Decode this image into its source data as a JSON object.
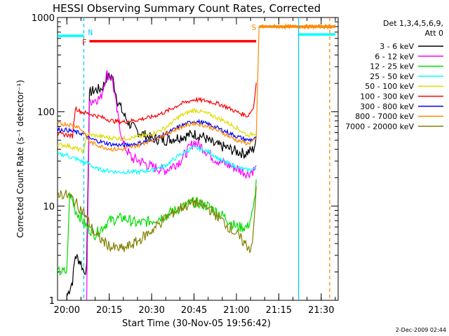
{
  "chart_data": {
    "type": "line",
    "title": "HESSI Observing Summary Count Rates, Corrected",
    "xlabel": "Start Time (30-Nov-05 19:56:42)",
    "ylabel": "Corrected Count Rate (s⁻¹ detector⁻¹)",
    "y_scale": "log",
    "ylim": [
      1,
      1000
    ],
    "xlim": [
      "19:56:42",
      "21:36:00"
    ],
    "x_ticks": [
      "20:00",
      "20:15",
      "20:30",
      "20:45",
      "21:00",
      "21:15",
      "21:30"
    ],
    "y_ticks": [
      "1",
      "10",
      "100",
      "1000"
    ],
    "legend_position": "right",
    "legend_header": [
      "Det 1,3,4,5,6,9,",
      "Att 0"
    ],
    "grid": false,
    "footer": "2-Dec-2009 02:44",
    "flag_bars": [
      {
        "label": "F",
        "color": "#ff0000",
        "start": "20:08",
        "end": "21:07",
        "y": 560
      },
      {
        "label": "S",
        "color": "#ff8800",
        "start": "21:08",
        "end": "21:35",
        "y": 800
      },
      {
        "label": "",
        "color": "#00ffff",
        "start": "19:56",
        "end": "20:06",
        "y": 640
      },
      {
        "label": "",
        "color": "#00ffff",
        "start": "21:22",
        "end": "21:35",
        "y": 660
      }
    ],
    "markers": [
      {
        "label": "N",
        "color": "#00ccff",
        "x": "20:06",
        "style": "dashed"
      },
      {
        "label": "",
        "color": "#00ccff",
        "x": "21:22",
        "style": "solid"
      },
      {
        "label": "",
        "color": "#ff8800",
        "x": "21:33",
        "style": "dashed"
      }
    ],
    "series": [
      {
        "name": "3 - 6 keV",
        "color": "#000000",
        "points": [
          [
            "20:00",
            1.1
          ],
          [
            "20:02",
            1.6
          ],
          [
            "20:03",
            3
          ],
          [
            "20:05",
            2.5
          ],
          [
            "20:06",
            2
          ],
          [
            "20:07",
            2.2
          ],
          [
            "20:08",
            160
          ],
          [
            "20:10",
            170
          ],
          [
            "20:12",
            175
          ],
          [
            "20:13",
            190
          ],
          [
            "20:14",
            230
          ],
          [
            "20:16",
            240
          ],
          [
            "20:18",
            130
          ],
          [
            "20:20",
            95
          ],
          [
            "20:22",
            75
          ],
          [
            "20:25",
            62
          ],
          [
            "20:30",
            52
          ],
          [
            "20:35",
            50
          ],
          [
            "20:40",
            54
          ],
          [
            "20:45",
            58
          ],
          [
            "20:48",
            55
          ],
          [
            "20:52",
            45
          ],
          [
            "20:56",
            42
          ],
          [
            "21:00",
            38
          ],
          [
            "21:03",
            36
          ],
          [
            "21:06",
            40
          ],
          [
            "21:07",
            50
          ]
        ]
      },
      {
        "name": "6 - 12 keV",
        "color": "#ff00ff",
        "points": [
          [
            "20:07",
            1.0
          ],
          [
            "20:08",
            130
          ],
          [
            "20:10",
            135
          ],
          [
            "20:12",
            140
          ],
          [
            "20:14",
            250
          ],
          [
            "20:16",
            230
          ],
          [
            "20:18",
            90
          ],
          [
            "20:20",
            45
          ],
          [
            "20:23",
            32
          ],
          [
            "20:26",
            30
          ],
          [
            "20:30",
            26
          ],
          [
            "20:35",
            24
          ],
          [
            "20:40",
            30
          ],
          [
            "20:45",
            48
          ],
          [
            "20:48",
            42
          ],
          [
            "20:52",
            32
          ],
          [
            "20:56",
            28
          ],
          [
            "21:00",
            25
          ],
          [
            "21:04",
            22
          ],
          [
            "21:07",
            25
          ]
        ]
      },
      {
        "name": "12 - 25 keV",
        "color": "#00dd00",
        "points": [
          [
            "19:56",
            2.0
          ],
          [
            "20:00",
            2.0
          ],
          [
            "20:01",
            14
          ],
          [
            "20:03",
            9
          ],
          [
            "20:05",
            7.5
          ],
          [
            "20:07",
            6
          ],
          [
            "20:10",
            5
          ],
          [
            "20:15",
            7
          ],
          [
            "20:20",
            7.5
          ],
          [
            "20:25",
            6.5
          ],
          [
            "20:30",
            7
          ],
          [
            "20:35",
            8
          ],
          [
            "20:40",
            9.5
          ],
          [
            "20:45",
            11
          ],
          [
            "20:50",
            10
          ],
          [
            "20:55",
            8
          ],
          [
            "21:00",
            6
          ],
          [
            "21:04",
            6
          ],
          [
            "21:06",
            9
          ],
          [
            "21:07",
            18
          ]
        ]
      },
      {
        "name": "25 - 50 keV",
        "color": "#00ffff",
        "points": [
          [
            "19:56",
            35
          ],
          [
            "20:00",
            35
          ],
          [
            "20:01",
            33
          ],
          [
            "20:03",
            32
          ],
          [
            "20:05",
            30
          ],
          [
            "20:08",
            28
          ],
          [
            "20:10",
            25
          ],
          [
            "20:13",
            24
          ],
          [
            "20:18",
            23
          ],
          [
            "20:25",
            23
          ],
          [
            "20:30",
            24
          ],
          [
            "20:35",
            27
          ],
          [
            "20:40",
            35
          ],
          [
            "20:45",
            42
          ],
          [
            "20:50",
            38
          ],
          [
            "20:55",
            30
          ],
          [
            "21:00",
            26
          ],
          [
            "21:04",
            24
          ],
          [
            "21:07",
            25
          ]
        ]
      },
      {
        "name": "50 - 100 keV",
        "color": "#dddd00",
        "points": [
          [
            "19:56",
            45
          ],
          [
            "20:00",
            44
          ],
          [
            "20:02",
            42
          ],
          [
            "20:04",
            40
          ],
          [
            "20:06",
            38
          ],
          [
            "20:07",
            58
          ],
          [
            "20:10",
            56
          ],
          [
            "20:15",
            53
          ],
          [
            "20:20",
            52
          ],
          [
            "20:25",
            54
          ],
          [
            "20:30",
            58
          ],
          [
            "20:35",
            68
          ],
          [
            "20:40",
            90
          ],
          [
            "20:45",
            105
          ],
          [
            "20:50",
            95
          ],
          [
            "20:55",
            82
          ],
          [
            "21:00",
            68
          ],
          [
            "21:04",
            56
          ],
          [
            "21:07",
            60
          ]
        ]
      },
      {
        "name": "100 - 300 keV",
        "color": "#ff0000",
        "points": [
          [
            "19:56",
            58
          ],
          [
            "20:00",
            57
          ],
          [
            "20:02",
            55
          ],
          [
            "20:03",
            110
          ],
          [
            "20:05",
            100
          ],
          [
            "20:08",
            95
          ],
          [
            "20:12",
            88
          ],
          [
            "20:16",
            80
          ],
          [
            "20:20",
            78
          ],
          [
            "20:25",
            82
          ],
          [
            "20:30",
            88
          ],
          [
            "20:35",
            100
          ],
          [
            "20:40",
            120
          ],
          [
            "20:45",
            135
          ],
          [
            "20:50",
            130
          ],
          [
            "20:55",
            118
          ],
          [
            "21:00",
            100
          ],
          [
            "21:04",
            90
          ],
          [
            "21:06",
            110
          ],
          [
            "21:07",
            200
          ]
        ]
      },
      {
        "name": "300 - 800 keV",
        "color": "#0000ff",
        "points": [
          [
            "19:56",
            65
          ],
          [
            "20:00",
            64
          ],
          [
            "20:02",
            62
          ],
          [
            "20:04",
            60
          ],
          [
            "20:06",
            58
          ],
          [
            "20:08",
            52
          ],
          [
            "20:12",
            48
          ],
          [
            "20:16",
            45
          ],
          [
            "20:20",
            44
          ],
          [
            "20:25",
            46
          ],
          [
            "20:30",
            50
          ],
          [
            "20:35",
            58
          ],
          [
            "20:40",
            70
          ],
          [
            "20:45",
            80
          ],
          [
            "20:50",
            74
          ],
          [
            "20:55",
            64
          ],
          [
            "21:00",
            55
          ],
          [
            "21:04",
            50
          ],
          [
            "21:07",
            52
          ]
        ]
      },
      {
        "name": "800 - 7000 keV",
        "color": "#ff8800",
        "points": [
          [
            "19:56",
            75
          ],
          [
            "20:00",
            74
          ],
          [
            "20:02",
            72
          ],
          [
            "20:04",
            70
          ],
          [
            "20:06",
            60
          ],
          [
            "20:08",
            48
          ],
          [
            "20:12",
            43
          ],
          [
            "20:16",
            40
          ],
          [
            "20:20",
            40
          ],
          [
            "20:25",
            44
          ],
          [
            "20:30",
            50
          ],
          [
            "20:35",
            58
          ],
          [
            "20:40",
            68
          ],
          [
            "20:45",
            76
          ],
          [
            "20:50",
            70
          ],
          [
            "20:55",
            60
          ],
          [
            "21:00",
            50
          ],
          [
            "21:04",
            46
          ],
          [
            "21:07",
            50
          ],
          [
            "21:08",
            800
          ],
          [
            "21:35",
            800
          ]
        ]
      },
      {
        "name": "7000 - 20000 keV",
        "color": "#808000",
        "points": [
          [
            "19:56",
            14
          ],
          [
            "20:00",
            13
          ],
          [
            "20:02",
            12
          ],
          [
            "20:04",
            10
          ],
          [
            "20:06",
            8.5
          ],
          [
            "20:08",
            6.5
          ],
          [
            "20:10",
            5
          ],
          [
            "20:13",
            4.2
          ],
          [
            "20:16",
            3.6
          ],
          [
            "20:20",
            3.5
          ],
          [
            "20:25",
            4.2
          ],
          [
            "20:30",
            5.5
          ],
          [
            "20:35",
            7.5
          ],
          [
            "20:40",
            9.5
          ],
          [
            "20:45",
            11
          ],
          [
            "20:50",
            9.5
          ],
          [
            "20:55",
            7
          ],
          [
            "21:00",
            5
          ],
          [
            "21:03",
            4
          ],
          [
            "21:05",
            3.5
          ],
          [
            "21:06",
            5
          ],
          [
            "21:07",
            15
          ]
        ]
      }
    ]
  }
}
